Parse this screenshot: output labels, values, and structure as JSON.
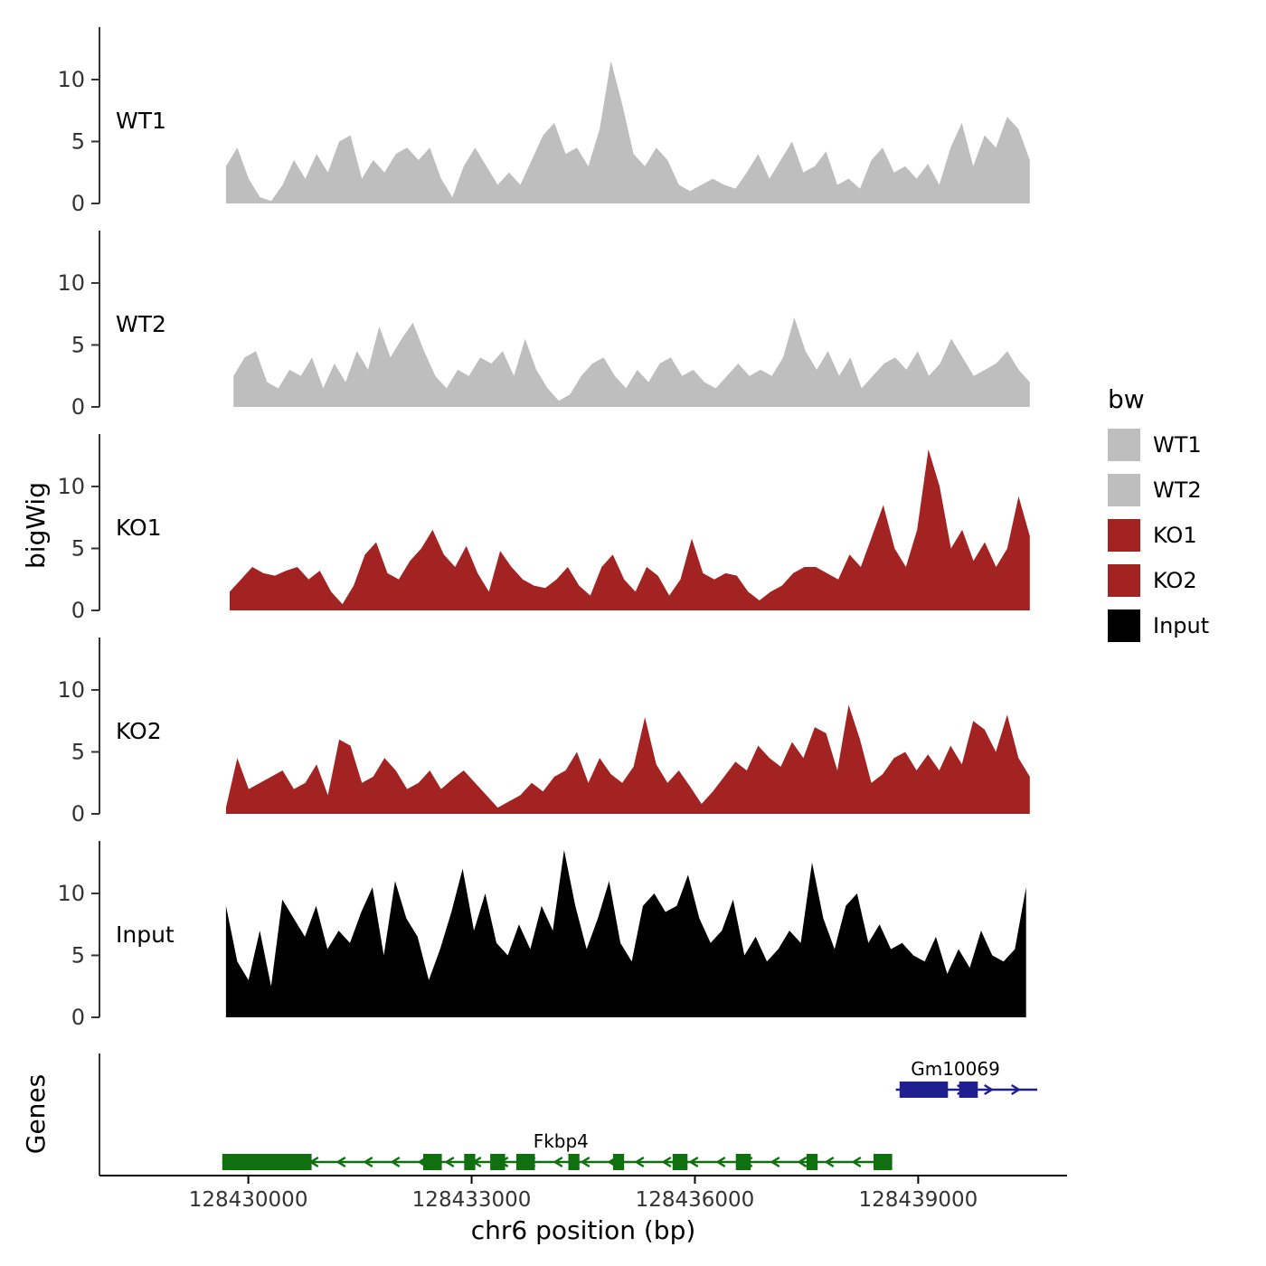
{
  "labels": {
    "y_bigwig": "bigWig",
    "y_genes": "Genes",
    "x_title": "chr6 position (bp)"
  },
  "legend": {
    "title": "bw",
    "items": [
      {
        "label": "WT1",
        "color": "#BEBEBE"
      },
      {
        "label": "WT2",
        "color": "#BEBEBE"
      },
      {
        "label": "KO1",
        "color": "#A32222"
      },
      {
        "label": "KO2",
        "color": "#A32222"
      },
      {
        "label": "Input",
        "color": "#000000"
      }
    ]
  },
  "chart_data": {
    "type": "area",
    "title": "",
    "xlabel": "chr6 position (bp)",
    "ylabel": "bigWig",
    "x_domain": [
      128428000,
      128441000
    ],
    "x_ticks": [
      128430000,
      128433000,
      128436000,
      128439000
    ],
    "x_tick_labels": [
      "128430000",
      "128433000",
      "128436000",
      "128439000"
    ],
    "ylim": [
      0,
      13.5
    ],
    "y_ticks": [
      0,
      5,
      10
    ],
    "grid": false,
    "legend_position": "right",
    "tracks": [
      {
        "name": "WT1",
        "color": "#BEBEBE",
        "start": 128429700,
        "end": 128440500,
        "values": [
          3,
          4.5,
          2,
          0.5,
          0.2,
          1.5,
          3.5,
          2,
          4,
          2.5,
          5,
          5.5,
          2,
          3.5,
          2.5,
          4,
          4.5,
          3.5,
          4.5,
          2,
          0.5,
          3,
          4.5,
          3,
          1.5,
          2.5,
          1.5,
          3.5,
          5.5,
          6.5,
          4,
          4.5,
          3,
          6,
          11.5,
          8,
          4,
          3,
          4.5,
          3.5,
          1.5,
          1,
          1.5,
          2,
          1.5,
          1.2,
          2.5,
          4,
          2,
          3.5,
          5,
          2.5,
          3,
          4.2,
          1.5,
          2,
          1.2,
          3.5,
          4.5,
          2.5,
          3,
          2,
          3.2,
          1.5,
          4.5,
          6.5,
          3,
          5.5,
          4.5,
          7,
          6,
          3.5
        ]
      },
      {
        "name": "WT2",
        "color": "#BEBEBE",
        "start": 128429800,
        "end": 128440500,
        "values": [
          2.5,
          4,
          4.5,
          2,
          1.5,
          3,
          2.5,
          4,
          1.5,
          3.5,
          2,
          4.5,
          3,
          6.5,
          4,
          5.5,
          6.8,
          4.5,
          2.5,
          1.5,
          3,
          2.5,
          4,
          3.5,
          4.5,
          2.5,
          5.5,
          3,
          1.5,
          0.5,
          1,
          2.5,
          3.5,
          4,
          2.5,
          1.5,
          3,
          2,
          3.5,
          4,
          2.5,
          3,
          2,
          1.5,
          2.5,
          3.5,
          2.5,
          3,
          2.5,
          4,
          7.2,
          4.5,
          3,
          4.5,
          2.5,
          4,
          1.5,
          2.5,
          3.5,
          4,
          3,
          4.5,
          2.5,
          3.5,
          5.5,
          4,
          2.5,
          3,
          3.5,
          4.5,
          3,
          2
        ]
      },
      {
        "name": "KO1",
        "color": "#A32222",
        "start": 128429750,
        "end": 128440500,
        "values": [
          1.5,
          2.5,
          3.5,
          3,
          2.8,
          3.2,
          3.5,
          2.5,
          3.2,
          1.5,
          0.5,
          2,
          4.5,
          5.5,
          3,
          2.5,
          4,
          5,
          6.5,
          4.5,
          3.5,
          5.2,
          3,
          1.5,
          4.8,
          3.5,
          2.5,
          2,
          1.8,
          2.5,
          3.5,
          2,
          1.2,
          3.5,
          4.5,
          2.5,
          1.5,
          3.5,
          2.8,
          1.2,
          2.5,
          5.8,
          3,
          2.5,
          3,
          2.8,
          1.5,
          0.8,
          1.5,
          2,
          3,
          3.5,
          3.5,
          3,
          2.5,
          4.5,
          3.5,
          6,
          8.5,
          5,
          3.5,
          6.5,
          13,
          10,
          5,
          6.5,
          4,
          5.5,
          3.5,
          5,
          9.2,
          6
        ]
      },
      {
        "name": "KO2",
        "color": "#A32222",
        "start": 128429700,
        "end": 128440500,
        "values": [
          0.5,
          4.5,
          2,
          2.5,
          3,
          3.5,
          2,
          2.5,
          4,
          1.5,
          6,
          5.5,
          2.5,
          3,
          4.5,
          3.5,
          2,
          2.5,
          3.5,
          2,
          2.8,
          3.5,
          2.5,
          1.5,
          0.5,
          1,
          1.5,
          2.5,
          1.8,
          3,
          3.5,
          5,
          2.5,
          4.5,
          3.2,
          2.5,
          3.8,
          7.8,
          4,
          2.5,
          3.5,
          2.2,
          0.8,
          1.8,
          3,
          4.2,
          3.5,
          5.5,
          4.5,
          3.8,
          5.8,
          4.5,
          7,
          6.5,
          3.5,
          8.8,
          6,
          2.5,
          3.2,
          4.5,
          5,
          3.5,
          4.8,
          3.5,
          5.5,
          4,
          7.5,
          6.8,
          5,
          8,
          4.5,
          3
        ]
      },
      {
        "name": "Input",
        "color": "#000000",
        "start": 128429700,
        "end": 128440450,
        "values": [
          9,
          4.5,
          3,
          7,
          2.5,
          9.5,
          8,
          6.5,
          9,
          5.5,
          7,
          6,
          8.5,
          10.5,
          5,
          11,
          8,
          6.5,
          3,
          5.5,
          8.5,
          12,
          7,
          10,
          6,
          5,
          7.5,
          5.5,
          9,
          7,
          13.5,
          9,
          5.5,
          8,
          11,
          6,
          4.5,
          9,
          10,
          8.5,
          9,
          11.5,
          8,
          6,
          7,
          9.5,
          5,
          6.5,
          4.5,
          5.5,
          7,
          6,
          12.5,
          8,
          5.5,
          9,
          10,
          6,
          7.5,
          5.5,
          6,
          5,
          4.5,
          6.5,
          3.5,
          5.5,
          4,
          7,
          5,
          4.5,
          5.5,
          10.5
        ]
      }
    ],
    "genes": [
      {
        "name": "Gm10069",
        "color": "#1F1F8F",
        "strand": "+",
        "row": 0,
        "start": 128438700,
        "end": 128440600,
        "label_bp": 128439500,
        "exons": [
          [
            128438750,
            128439400
          ],
          [
            128439550,
            128439800
          ]
        ]
      },
      {
        "name": "Fkbp4",
        "color": "#107010",
        "strand": "-",
        "row": 1,
        "start": 128429650,
        "end": 128438650,
        "label_bp": 128434200,
        "exons": [
          [
            128429650,
            128430850
          ],
          [
            128432350,
            128432600
          ],
          [
            128432900,
            128433050
          ],
          [
            128433250,
            128433450
          ],
          [
            128433600,
            128433850
          ],
          [
            128434300,
            128434450
          ],
          [
            128434900,
            128435050
          ],
          [
            128435700,
            128435900
          ],
          [
            128436550,
            128436750
          ],
          [
            128437500,
            128437650
          ],
          [
            128438400,
            128438650
          ]
        ]
      }
    ]
  }
}
